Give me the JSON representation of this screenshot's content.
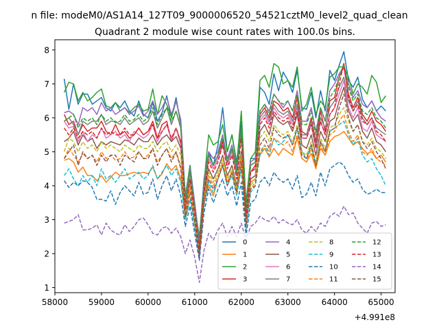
{
  "suptitle": "n file: modeM0/AS1A14_127T09_9000006520_54521cztM0_level2_quad_clean",
  "chart_data": {
    "type": "line",
    "title": "Quadrant 2 module wise count rates with 100.0s bins.",
    "xlabel": "",
    "ylabel": "",
    "x_offset_label": "+4.991e8",
    "xlim": [
      58000,
      65300
    ],
    "ylim": [
      0.85,
      8.3
    ],
    "xticks": [
      58000,
      59000,
      60000,
      61000,
      62000,
      63000,
      64000,
      65000
    ],
    "xtick_labels": [
      "58000",
      "59000",
      "60000",
      "61000",
      "62000",
      "63000",
      "64000",
      "65000"
    ],
    "yticks": [
      1,
      2,
      3,
      4,
      5,
      6,
      7,
      8
    ],
    "ytick_labels": [
      "1",
      "2",
      "3",
      "4",
      "5",
      "6",
      "7",
      "8"
    ],
    "grid": false,
    "legend_position": "bottom-right",
    "x": {
      "start": 58200,
      "step": 100,
      "count": 70
    },
    "series": [
      {
        "name": "0",
        "color": "#1f77b4",
        "dash": "solid",
        "values": [
          7.15,
          6.25,
          7.0,
          6.4,
          6.7,
          6.7,
          6.4,
          6.5,
          6.6,
          6.3,
          6.2,
          6.45,
          6.3,
          6.5,
          6.2,
          6.05,
          6.5,
          6.1,
          6.0,
          6.45,
          5.9,
          6.15,
          6.65,
          6.0,
          6.6,
          5.8,
          3.6,
          4.6,
          3.5,
          2.4,
          4.2,
          5.0,
          4.6,
          5.2,
          6.3,
          5.0,
          5.5,
          4.7,
          5.9,
          3.4,
          4.8,
          4.8,
          6.9,
          6.75,
          6.4,
          7.3,
          6.8,
          7.35,
          7.1,
          6.75,
          7.4,
          6.3,
          6.25,
          6.75,
          6.0,
          6.8,
          6.2,
          7.4,
          7.1,
          7.55,
          7.95,
          7.1,
          6.9,
          7.2,
          6.55,
          6.3,
          6.5,
          6.2,
          6.35,
          6.2
        ]
      },
      {
        "name": "1",
        "color": "#ff7f0e",
        "dash": "solid",
        "values": [
          4.75,
          4.8,
          4.7,
          4.4,
          4.55,
          4.3,
          4.3,
          4.15,
          4.3,
          4.1,
          4.25,
          4.4,
          4.3,
          4.3,
          4.35,
          4.4,
          4.35,
          4.4,
          4.35,
          4.55,
          4.2,
          4.35,
          4.65,
          4.45,
          4.6,
          4.2,
          3.0,
          3.6,
          3.2,
          2.2,
          3.5,
          4.0,
          3.7,
          4.2,
          4.6,
          4.1,
          4.4,
          3.9,
          4.5,
          3.1,
          4.1,
          4.2,
          4.9,
          5.1,
          4.85,
          5.1,
          4.9,
          5.1,
          5.0,
          4.9,
          5.4,
          4.8,
          4.7,
          4.95,
          4.5,
          5.1,
          4.9,
          5.3,
          5.45,
          5.5,
          5.6,
          5.4,
          5.2,
          5.3,
          5.1,
          4.95,
          5.0,
          4.8,
          4.9,
          4.7
        ]
      },
      {
        "name": "2",
        "color": "#2ca02c",
        "dash": "solid",
        "values": [
          6.75,
          7.05,
          7.0,
          6.5,
          6.75,
          6.5,
          6.6,
          6.75,
          6.85,
          6.35,
          6.3,
          6.45,
          6.2,
          6.3,
          6.15,
          6.3,
          6.4,
          6.2,
          6.25,
          6.85,
          6.1,
          6.65,
          6.4,
          6.0,
          6.5,
          5.9,
          3.7,
          4.6,
          3.4,
          2.5,
          4.1,
          5.5,
          5.2,
          5.3,
          5.8,
          5.0,
          5.5,
          4.6,
          6.2,
          3.5,
          4.8,
          5.0,
          7.1,
          7.25,
          6.9,
          7.6,
          7.5,
          7.0,
          7.1,
          6.9,
          7.5,
          6.2,
          6.4,
          6.9,
          6.1,
          6.5,
          6.3,
          7.2,
          7.3,
          7.5,
          7.5,
          7.2,
          6.7,
          7.0,
          6.9,
          6.7,
          7.25,
          7.05,
          6.45,
          6.65
        ]
      },
      {
        "name": "3",
        "color": "#d62728",
        "dash": "solid",
        "values": [
          6.1,
          5.8,
          5.9,
          5.5,
          5.8,
          5.6,
          5.7,
          5.7,
          5.9,
          5.6,
          5.5,
          5.8,
          5.5,
          5.6,
          5.4,
          5.5,
          5.7,
          5.5,
          5.6,
          5.9,
          5.4,
          5.8,
          5.9,
          5.3,
          5.7,
          5.3,
          3.3,
          4.2,
          3.1,
          2.1,
          3.8,
          4.8,
          4.5,
          4.8,
          5.3,
          4.6,
          5.0,
          4.3,
          5.6,
          3.2,
          4.4,
          4.6,
          6.1,
          6.3,
          6.0,
          6.5,
          6.4,
          6.2,
          6.3,
          6.0,
          6.6,
          5.6,
          5.5,
          6.0,
          5.3,
          6.2,
          5.6,
          6.5,
          6.6,
          7.2,
          7.5,
          6.7,
          6.3,
          6.6,
          6.1,
          5.9,
          6.2,
          5.9,
          5.8,
          5.6
        ]
      },
      {
        "name": "4",
        "color": "#9467bd",
        "dash": "solid",
        "values": [
          6.15,
          6.2,
          6.1,
          5.8,
          6.3,
          6.2,
          6.3,
          6.1,
          6.45,
          6.2,
          6.3,
          6.1,
          6.2,
          6.3,
          6.1,
          6.2,
          6.35,
          6.05,
          6.2,
          6.5,
          6.1,
          6.3,
          6.6,
          6.1,
          6.5,
          5.95,
          3.6,
          4.5,
          3.5,
          2.3,
          4.1,
          5.0,
          4.8,
          5.0,
          5.5,
          4.8,
          5.2,
          4.5,
          5.7,
          3.3,
          4.7,
          4.8,
          6.2,
          6.4,
          6.2,
          6.7,
          6.5,
          6.3,
          6.5,
          6.2,
          6.8,
          5.9,
          5.9,
          6.3,
          5.6,
          6.3,
          5.9,
          6.8,
          7.0,
          7.3,
          7.5,
          7.0,
          6.6,
          6.8,
          6.4,
          6.3,
          6.5,
          6.2,
          6.0,
          5.9
        ]
      },
      {
        "name": "5",
        "color": "#8c564b",
        "dash": "solid",
        "values": [
          5.3,
          5.4,
          5.6,
          5.2,
          5.5,
          5.3,
          5.4,
          5.1,
          5.3,
          5.2,
          5.3,
          5.25,
          5.2,
          5.35,
          5.3,
          5.2,
          5.4,
          5.3,
          5.3,
          5.5,
          5.2,
          5.4,
          5.5,
          5.3,
          5.45,
          5.1,
          3.3,
          4.1,
          3.1,
          2.0,
          3.7,
          4.5,
          4.2,
          4.5,
          4.9,
          4.3,
          4.6,
          4.0,
          5.0,
          2.9,
          4.2,
          4.3,
          5.6,
          5.8,
          5.5,
          6.1,
          5.9,
          5.8,
          5.9,
          5.6,
          6.1,
          5.2,
          5.1,
          5.5,
          4.9,
          5.6,
          5.3,
          5.9,
          6.0,
          6.5,
          6.9,
          6.2,
          5.9,
          6.1,
          5.6,
          5.4,
          5.7,
          5.3,
          5.2,
          5.0
        ]
      },
      {
        "name": "6",
        "color": "#e377c2",
        "dash": "solid",
        "values": [
          5.9,
          5.7,
          5.75,
          5.3,
          5.6,
          5.3,
          5.5,
          5.4,
          5.7,
          5.4,
          5.5,
          5.6,
          5.4,
          5.5,
          5.3,
          5.6,
          5.5,
          5.4,
          5.5,
          5.8,
          5.3,
          5.6,
          5.8,
          5.35,
          5.7,
          5.2,
          3.3,
          4.2,
          3.2,
          2.1,
          3.8,
          4.8,
          4.5,
          4.8,
          5.2,
          4.6,
          5.0,
          4.3,
          5.5,
          3.2,
          4.4,
          4.5,
          5.9,
          6.1,
          5.8,
          6.3,
          6.1,
          6.0,
          6.1,
          5.8,
          6.3,
          5.4,
          5.4,
          5.8,
          5.1,
          5.9,
          5.5,
          6.1,
          6.3,
          6.7,
          7.1,
          6.3,
          6.0,
          6.3,
          5.7,
          5.6,
          5.9,
          5.5,
          5.4,
          5.3
        ]
      },
      {
        "name": "7",
        "color": "#7f7f7f",
        "dash": "solid",
        "values": [
          5.9,
          6.0,
          5.8,
          5.5,
          5.9,
          5.8,
          5.9,
          5.9,
          6.1,
          5.8,
          5.9,
          5.9,
          5.8,
          6.0,
          5.8,
          5.9,
          6.0,
          5.8,
          5.9,
          6.2,
          5.7,
          6.0,
          6.3,
          5.8,
          6.2,
          5.7,
          3.5,
          4.4,
          3.4,
          2.2,
          4.0,
          4.9,
          4.6,
          4.9,
          5.4,
          4.7,
          5.1,
          4.4,
          5.6,
          3.3,
          4.6,
          4.7,
          6.0,
          6.2,
          5.9,
          6.4,
          6.2,
          6.1,
          6.2,
          5.9,
          6.4,
          5.5,
          5.5,
          5.9,
          5.2,
          6.0,
          5.7,
          6.3,
          6.5,
          6.9,
          7.2,
          6.5,
          6.2,
          6.5,
          6.0,
          5.8,
          6.0,
          5.7,
          5.6,
          5.5
        ]
      },
      {
        "name": "8",
        "color": "#bcbd22",
        "dash": "dashed",
        "values": [
          5.0,
          5.4,
          5.3,
          5.0,
          5.3,
          5.1,
          5.2,
          5.0,
          5.3,
          5.1,
          5.2,
          5.1,
          5.0,
          5.2,
          5.1,
          5.0,
          5.2,
          5.1,
          5.1,
          5.3,
          5.0,
          5.2,
          5.3,
          5.0,
          5.2,
          4.9,
          3.2,
          4.0,
          3.0,
          2.0,
          3.6,
          4.4,
          4.1,
          4.4,
          4.8,
          4.2,
          4.5,
          3.9,
          4.9,
          2.8,
          4.0,
          4.2,
          5.4,
          5.6,
          5.3,
          5.8,
          5.6,
          5.5,
          5.6,
          5.3,
          5.8,
          5.0,
          4.9,
          5.3,
          4.7,
          5.4,
          5.1,
          5.7,
          5.8,
          6.1,
          6.3,
          5.9,
          5.6,
          5.8,
          5.3,
          5.2,
          5.4,
          5.1,
          5.0,
          4.8
        ]
      },
      {
        "name": "9",
        "color": "#17becf",
        "dash": "dashed",
        "values": [
          4.3,
          4.5,
          4.2,
          4.0,
          4.3,
          4.1,
          4.3,
          4.0,
          4.5,
          4.2,
          4.3,
          4.1,
          4.3,
          4.5,
          4.2,
          4.3,
          4.4,
          4.2,
          4.3,
          4.6,
          4.2,
          4.4,
          4.6,
          4.3,
          4.5,
          4.1,
          3.0,
          3.6,
          2.8,
          1.9,
          3.4,
          4.1,
          3.8,
          4.2,
          4.6,
          4.0,
          4.3,
          3.7,
          4.5,
          2.7,
          3.8,
          4.0,
          4.9,
          5.2,
          4.9,
          5.4,
          5.2,
          5.3,
          5.5,
          5.2,
          5.7,
          5.0,
          4.8,
          5.2,
          4.6,
          5.3,
          5.0,
          5.6,
          5.7,
          5.8,
          5.9,
          5.5,
          5.2,
          5.4,
          4.9,
          4.7,
          4.8,
          4.5,
          4.3,
          4.0
        ]
      },
      {
        "name": "10",
        "color": "#1f77b4",
        "dash": "dashed",
        "values": [
          4.15,
          3.95,
          4.1,
          4.0,
          4.15,
          4.1,
          3.95,
          3.6,
          3.6,
          3.55,
          3.85,
          3.45,
          3.8,
          4.0,
          3.85,
          3.7,
          4.1,
          3.75,
          3.8,
          4.2,
          3.6,
          4.0,
          4.3,
          3.85,
          4.2,
          3.7,
          2.8,
          3.4,
          2.6,
          1.8,
          3.2,
          3.9,
          3.5,
          3.9,
          4.2,
          3.7,
          4.0,
          3.4,
          4.1,
          2.5,
          3.5,
          3.6,
          4.1,
          4.25,
          4.0,
          4.4,
          4.2,
          4.1,
          4.2,
          3.9,
          4.3,
          3.65,
          3.75,
          4.1,
          3.7,
          4.4,
          4.0,
          4.5,
          4.6,
          4.7,
          4.6,
          4.3,
          4.1,
          4.2,
          3.9,
          3.75,
          3.8,
          3.9,
          3.8,
          3.8
        ]
      },
      {
        "name": "11",
        "color": "#ff7f0e",
        "dash": "dashed",
        "values": [
          4.8,
          5.1,
          4.9,
          4.7,
          4.95,
          4.8,
          4.9,
          4.7,
          5.0,
          4.8,
          4.9,
          4.75,
          4.8,
          5.0,
          4.8,
          4.85,
          5.0,
          4.8,
          4.9,
          5.1,
          4.7,
          4.9,
          5.1,
          4.8,
          5.0,
          4.6,
          3.1,
          3.9,
          2.9,
          2.0,
          3.5,
          4.3,
          4.0,
          4.3,
          4.7,
          4.1,
          4.4,
          3.8,
          4.8,
          2.8,
          3.9,
          4.1,
          5.0,
          5.2,
          5.0,
          5.4,
          5.3,
          5.2,
          5.3,
          5.0,
          5.5,
          4.8,
          4.7,
          5.1,
          4.5,
          5.2,
          4.9,
          5.5,
          5.6,
          5.9,
          6.1,
          5.6,
          5.3,
          5.5,
          5.0,
          4.9,
          5.1,
          4.8,
          4.7,
          4.6
        ]
      },
      {
        "name": "12",
        "color": "#2ca02c",
        "dash": "dashed",
        "values": [
          5.9,
          6.0,
          6.1,
          5.7,
          6.0,
          5.9,
          6.0,
          5.8,
          6.1,
          5.9,
          6.0,
          5.85,
          5.9,
          6.1,
          5.9,
          5.95,
          6.1,
          5.9,
          6.0,
          6.3,
          5.8,
          6.1,
          6.3,
          5.9,
          6.2,
          5.7,
          3.5,
          4.4,
          3.3,
          2.2,
          3.9,
          4.9,
          4.6,
          4.9,
          5.4,
          4.7,
          5.1,
          4.4,
          5.7,
          3.3,
          4.6,
          4.7,
          6.2,
          6.4,
          6.1,
          6.7,
          6.5,
          6.4,
          6.5,
          6.2,
          6.7,
          5.8,
          5.8,
          6.2,
          5.5,
          6.3,
          5.9,
          6.6,
          6.8,
          7.2,
          7.6,
          6.9,
          6.5,
          6.7,
          6.2,
          6.1,
          6.3,
          6.0,
          5.9,
          5.7
        ]
      },
      {
        "name": "13",
        "color": "#d62728",
        "dash": "dashed",
        "values": [
          5.7,
          5.5,
          5.7,
          5.4,
          5.6,
          5.5,
          5.6,
          5.4,
          5.7,
          5.5,
          5.6,
          5.5,
          5.5,
          5.7,
          5.5,
          5.5,
          5.7,
          5.5,
          5.6,
          5.8,
          5.4,
          5.6,
          5.8,
          5.4,
          5.7,
          5.3,
          3.3,
          4.2,
          3.2,
          2.1,
          3.8,
          4.7,
          4.4,
          4.7,
          5.2,
          4.5,
          4.9,
          4.2,
          5.4,
          3.1,
          4.4,
          4.5,
          5.8,
          6.0,
          5.7,
          6.2,
          6.0,
          5.9,
          6.0,
          5.7,
          6.2,
          5.4,
          5.4,
          5.8,
          5.1,
          5.9,
          5.5,
          6.1,
          6.3,
          7.0,
          7.6,
          6.6,
          6.2,
          6.4,
          5.9,
          5.8,
          6.0,
          5.6,
          5.5,
          5.3
        ]
      },
      {
        "name": "14",
        "color": "#9467bd",
        "dash": "dashed",
        "values": [
          2.9,
          2.95,
          3.0,
          3.15,
          2.7,
          2.7,
          2.75,
          2.85,
          2.55,
          2.9,
          2.7,
          2.6,
          2.55,
          2.85,
          2.65,
          2.8,
          3.0,
          3.05,
          2.85,
          2.6,
          2.55,
          2.75,
          2.8,
          2.6,
          2.75,
          2.5,
          2.0,
          2.4,
          1.9,
          1.15,
          2.1,
          2.6,
          2.4,
          2.7,
          2.9,
          2.5,
          2.8,
          2.5,
          2.9,
          2.4,
          2.8,
          2.9,
          3.1,
          3.0,
          2.95,
          3.1,
          2.9,
          3.0,
          2.9,
          2.85,
          3.0,
          2.7,
          2.6,
          2.8,
          2.65,
          2.9,
          2.8,
          3.1,
          3.2,
          3.1,
          3.4,
          3.15,
          3.2,
          2.9,
          2.75,
          2.6,
          2.9,
          2.95,
          2.8,
          2.85
        ]
      },
      {
        "name": "15",
        "color": "#8c564b",
        "dash": "dashed",
        "values": [
          4.8,
          5.0,
          5.2,
          4.6,
          5.0,
          4.8,
          4.9,
          4.6,
          4.9,
          4.7,
          4.9,
          4.9,
          4.6,
          4.9,
          4.8,
          4.7,
          5.0,
          4.8,
          4.8,
          5.1,
          4.6,
          4.9,
          5.1,
          4.7,
          5.0,
          4.5,
          3.1,
          3.8,
          2.9,
          1.9,
          3.5,
          4.2,
          3.9,
          4.2,
          4.6,
          4.0,
          4.4,
          3.8,
          4.7,
          2.8,
          3.9,
          4.0,
          5.2,
          5.4,
          5.1,
          5.7,
          5.5,
          5.4,
          5.5,
          5.2,
          5.7,
          4.9,
          4.8,
          5.2,
          4.6,
          5.3,
          5.0,
          5.6,
          5.7,
          6.3,
          6.7,
          6.0,
          5.6,
          5.8,
          5.3,
          5.1,
          5.3,
          5.0,
          4.8,
          4.5
        ]
      }
    ]
  }
}
